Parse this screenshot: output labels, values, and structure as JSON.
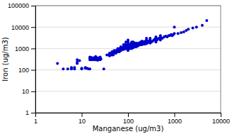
{
  "chart_data": {
    "type": "scatter",
    "xlabel": "Manganese (ug/m3)",
    "ylabel": "Iron (ug/m3)",
    "color": "#0000CC",
    "marker": "point",
    "log": true,
    "grid": "y",
    "xlim": [
      1,
      10000
    ],
    "ylim": [
      1,
      100000
    ],
    "xticks": [
      1,
      10,
      100,
      1000,
      10000
    ],
    "yticks": [
      1,
      10,
      100,
      1000,
      10000,
      100000
    ],
    "x": [
      3,
      4,
      5,
      6,
      6,
      7,
      7,
      8,
      8,
      8,
      9,
      10,
      10,
      12,
      12,
      13,
      14,
      15,
      15,
      15,
      15,
      16,
      16,
      17,
      17,
      18,
      18,
      19,
      19,
      20,
      20,
      20,
      20,
      22,
      22,
      22,
      23,
      23,
      25,
      25,
      25,
      26,
      30,
      35,
      38,
      40,
      40,
      40,
      42,
      45,
      45,
      45,
      48,
      50,
      50,
      50,
      52,
      55,
      55,
      55,
      58,
      60,
      60,
      60,
      60,
      62,
      65,
      65,
      65,
      68,
      70,
      70,
      70,
      70,
      70,
      72,
      72,
      75,
      75,
      75,
      78,
      80,
      80,
      80,
      80,
      80,
      82,
      82,
      85,
      85,
      85,
      85,
      88,
      88,
      90,
      90,
      90,
      90,
      90,
      92,
      92,
      95,
      95,
      100,
      100,
      100,
      100,
      100,
      100,
      100,
      100,
      100,
      105,
      105,
      105,
      110,
      110,
      110,
      110,
      115,
      115,
      115,
      120,
      120,
      120,
      120,
      120,
      125,
      125,
      125,
      130,
      130,
      130,
      130,
      135,
      135,
      140,
      140,
      140,
      145,
      145,
      150,
      150,
      150,
      155,
      155,
      160,
      160,
      170,
      170,
      180,
      180,
      190,
      190,
      200,
      200,
      200,
      210,
      210,
      220,
      220,
      230,
      230,
      240,
      240,
      250,
      250,
      250,
      250,
      260,
      270,
      280,
      290,
      300,
      300,
      300,
      300,
      320,
      340,
      360,
      380,
      400,
      400,
      400,
      400,
      420,
      440,
      460,
      500,
      500,
      500,
      500,
      550,
      600,
      650,
      700,
      750,
      800,
      850,
      900,
      950,
      1000,
      1000,
      1200,
      1400,
      1600,
      1800,
      2000,
      2500,
      3000,
      4000,
      5000
    ],
    "values": [
      200,
      110,
      110,
      110,
      130,
      110,
      130,
      200,
      230,
      300,
      270,
      110,
      120,
      120,
      130,
      120,
      110,
      110,
      300,
      350,
      400,
      300,
      380,
      300,
      350,
      300,
      370,
      300,
      360,
      300,
      380,
      400,
      420,
      280,
      320,
      370,
      300,
      350,
      300,
      370,
      400,
      320,
      110,
      500,
      500,
      450,
      500,
      600,
      500,
      500,
      600,
      700,
      500,
      600,
      700,
      800,
      700,
      600,
      700,
      800,
      800,
      700,
      800,
      900,
      1000,
      800,
      700,
      900,
      1000,
      900,
      800,
      900,
      1000,
      1100,
      1200,
      900,
      1000,
      900,
      1000,
      1100,
      1000,
      900,
      1000,
      1100,
      1200,
      1500,
      1000,
      1200,
      1000,
      1100,
      1300,
      1500,
      1000,
      1200,
      1000,
      1100,
      1200,
      1500,
      2000,
      1000,
      1200,
      1100,
      1300,
      800,
      900,
      1000,
      1100,
      1200,
      1400,
      1600,
      2000,
      2500,
      1000,
      1200,
      1500,
      1000,
      1200,
      1400,
      1600,
      1100,
      1300,
      1500,
      1000,
      1200,
      1500,
      1800,
      2000,
      1200,
      1500,
      1800,
      1100,
      1300,
      1500,
      2000,
      1200,
      1600,
      1200,
      1500,
      1800,
      1300,
      1600,
      1200,
      1500,
      1800,
      1400,
      1700,
      1300,
      1600,
      1400,
      1800,
      1500,
      1900,
      1500,
      2000,
      1500,
      1800,
      2200,
      1600,
      2000,
      1700,
      2100,
      1600,
      2000,
      1800,
      2200,
      1700,
      2000,
      2500,
      3000,
      1800,
      2000,
      2200,
      2000,
      1800,
      2200,
      2600,
      3000,
      2000,
      2200,
      2500,
      2800,
      2000,
      2500,
      3000,
      3500,
      2500,
      2800,
      3000,
      2500,
      3000,
      3500,
      4000,
      3000,
      3500,
      3800,
      3500,
      4000,
      4000,
      4500,
      4000,
      4500,
      5000,
      10000,
      5000,
      5500,
      6000,
      7000,
      8000,
      9000,
      10000,
      12000,
      20000
    ]
  }
}
